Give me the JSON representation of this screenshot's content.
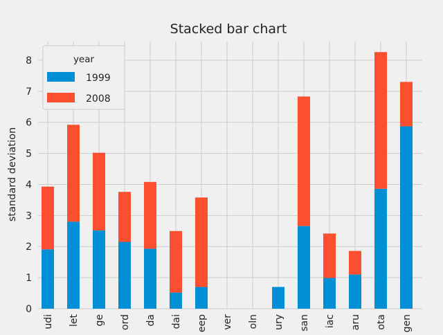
{
  "chart_data": {
    "type": "bar",
    "stacked": true,
    "title": "Stacked bar chart",
    "xlabel": "",
    "ylabel": "standard deviation",
    "ylim": [
      0,
      8.6
    ],
    "yticks": [
      0,
      1,
      2,
      3,
      4,
      5,
      6,
      7,
      8
    ],
    "grid": true,
    "legend": {
      "title": "year",
      "placement": "top-left"
    },
    "categories": [
      "udi",
      "let",
      "ge",
      "ord",
      "da",
      "dai",
      "eep",
      "ver",
      "oln",
      "ury",
      "san",
      "iac",
      "aru",
      "ota",
      "gen"
    ],
    "series": [
      {
        "name": "1999",
        "color": "#008fd5",
        "values": [
          1.91,
          2.8,
          2.52,
          2.15,
          1.93,
          0.52,
          0.7,
          0,
          0,
          0.7,
          2.66,
          0.99,
          1.1,
          3.86,
          5.87
        ]
      },
      {
        "name": "2008",
        "color": "#fc4f30",
        "values": [
          2.02,
          3.12,
          2.5,
          1.61,
          2.15,
          1.98,
          2.88,
          0,
          0,
          0,
          4.17,
          1.43,
          0.76,
          4.4,
          1.43
        ]
      }
    ]
  }
}
